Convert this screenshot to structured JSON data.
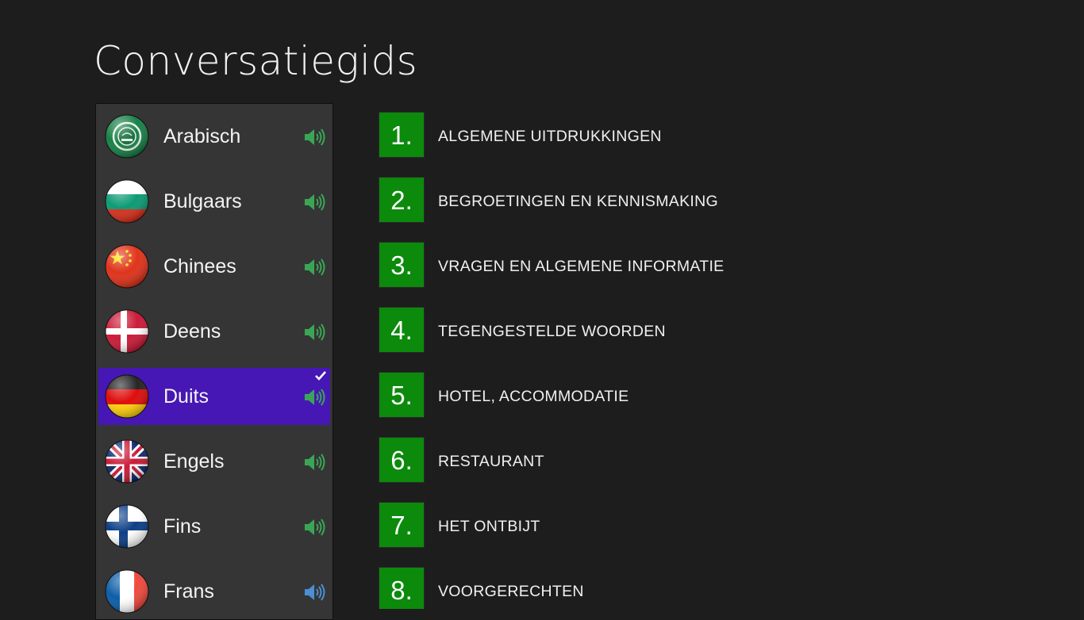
{
  "page": {
    "title": "Conversatiegids"
  },
  "languages": [
    {
      "name": "Arabisch",
      "flag": "arab-league-flag-icon",
      "selected": false
    },
    {
      "name": "Bulgaars",
      "flag": "bulgaria-flag-icon",
      "selected": false
    },
    {
      "name": "Chinees",
      "flag": "china-flag-icon",
      "selected": false
    },
    {
      "name": "Deens",
      "flag": "denmark-flag-icon",
      "selected": false
    },
    {
      "name": "Duits",
      "flag": "germany-flag-icon",
      "selected": true
    },
    {
      "name": "Engels",
      "flag": "uk-flag-icon",
      "selected": false
    },
    {
      "name": "Fins",
      "flag": "finland-flag-icon",
      "selected": false
    },
    {
      "name": "Frans",
      "flag": "france-flag-icon",
      "selected": false
    }
  ],
  "categories": [
    {
      "number": "1.",
      "label": "ALGEMENE UITDRUKKINGEN"
    },
    {
      "number": "2.",
      "label": "BEGROETINGEN EN KENNISMAKING"
    },
    {
      "number": "3.",
      "label": "VRAGEN EN ALGEMENE INFORMATIE"
    },
    {
      "number": "4.",
      "label": "TEGENGESTELDE WOORDEN"
    },
    {
      "number": "5.",
      "label": "HOTEL, ACCOMMODATIE"
    },
    {
      "number": "6.",
      "label": "RESTAURANT"
    },
    {
      "number": "7.",
      "label": "HET ONTBIJT"
    },
    {
      "number": "8.",
      "label": "VOORGERECHTEN"
    }
  ],
  "icons": {
    "speaker": "speaker-icon",
    "check": "checkmark-icon"
  },
  "colors": {
    "background": "#1d1d1d",
    "panel": "#353535",
    "selected": "#4617b4",
    "tile_green": "#0b8a0b",
    "speaker_green": "#3aa655",
    "speaker_blue": "#4a8fd4"
  }
}
